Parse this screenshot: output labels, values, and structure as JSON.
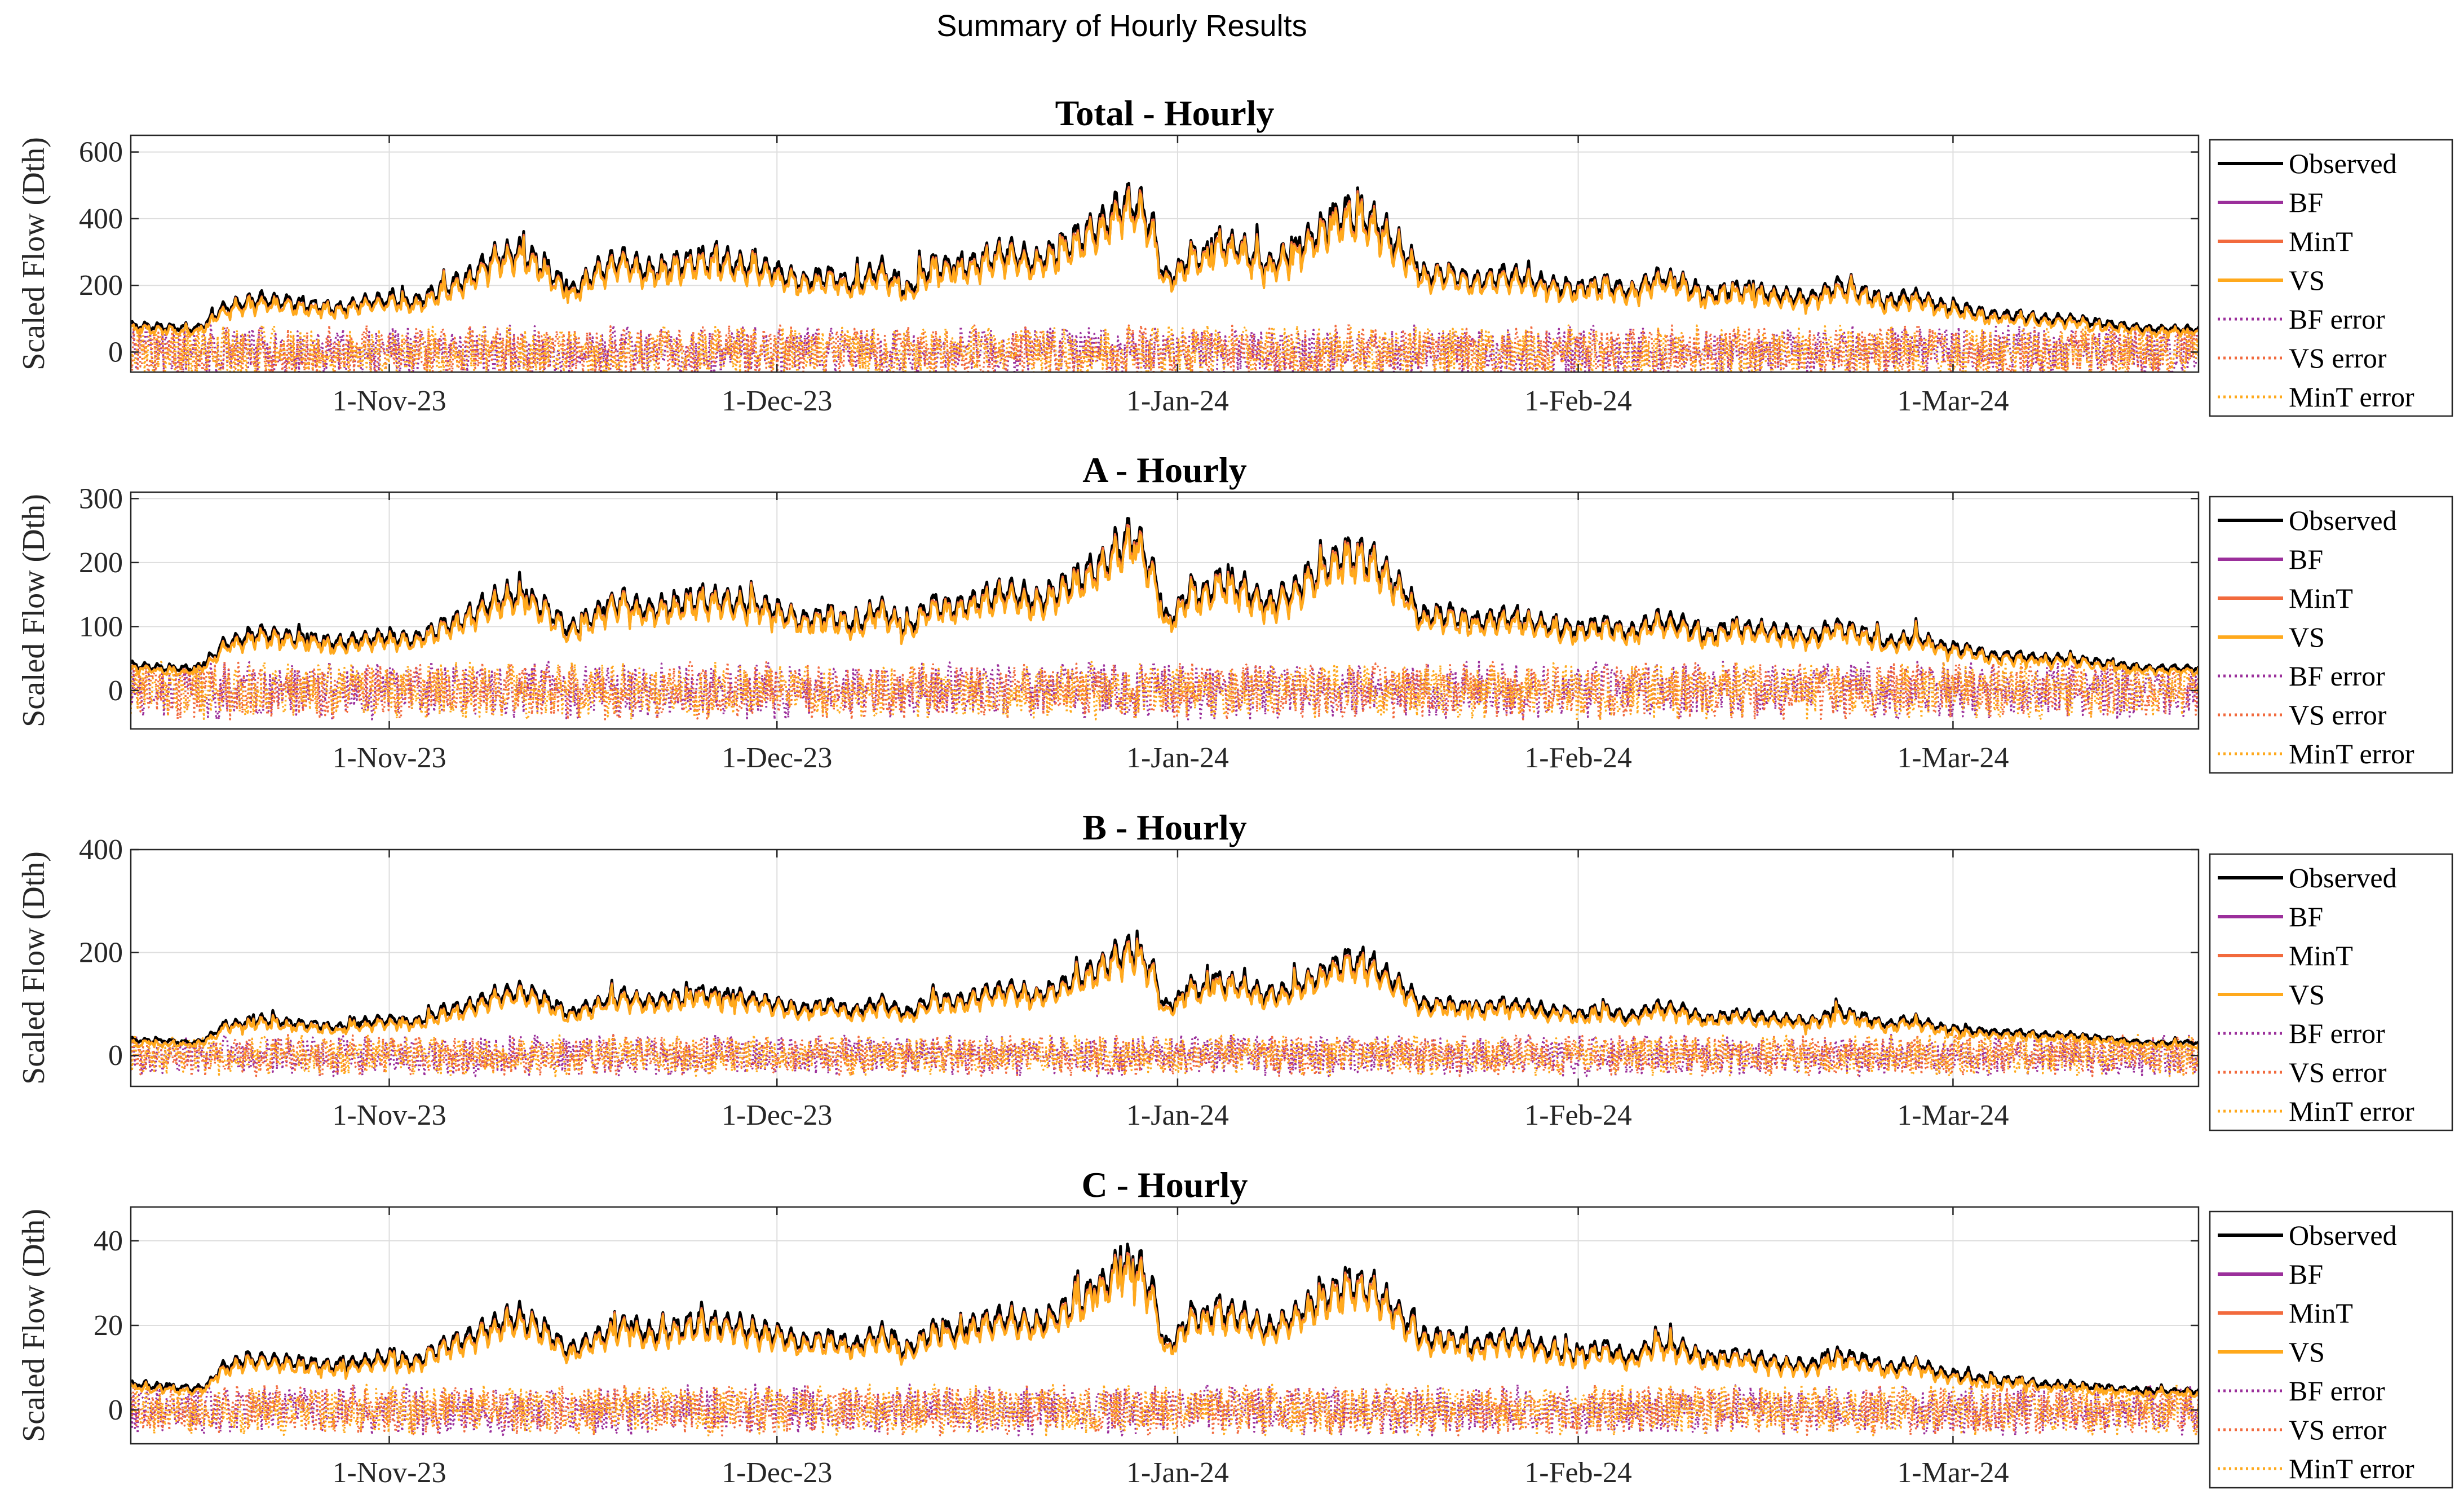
{
  "figure_title": "Summary of Hourly Results",
  "colors": {
    "Observed": "#000000",
    "BF": "#9b2f9b",
    "MinT": "#f26a3d",
    "VS": "#ffa91c",
    "BF error": "#9b2f9b",
    "VS error": "#f26a3d",
    "MinT error": "#ffa91c"
  },
  "legend": [
    "Observed",
    "BF",
    "MinT",
    "VS",
    "BF error",
    "VS error",
    "MinT error"
  ],
  "chart_data": [
    {
      "type": "line",
      "title": "Total - Hourly",
      "ylabel": "Scaled Flow (Dth)",
      "xlabel": "",
      "ylim": [
        -60,
        650
      ],
      "yticks": [
        0,
        200,
        400,
        600
      ],
      "ytick_labels": [
        "0",
        "200",
        "400",
        "600"
      ],
      "xlim_days": [
        0,
        160
      ],
      "xticks_days": [
        20,
        50,
        81,
        112,
        141
      ],
      "xtick_labels": [
        "1-Nov-23",
        "1-Dec-23",
        "1-Jan-24",
        "1-Feb-24",
        "1-Mar-24"
      ],
      "x_unit": "days since 12-Oct-23",
      "observed_daily": {
        "days": [
          0,
          3,
          5,
          6,
          7,
          9,
          10,
          12,
          14,
          16,
          18,
          20,
          22,
          24,
          26,
          28,
          30,
          32,
          34,
          36,
          38,
          40,
          42,
          44,
          46,
          48,
          50,
          52,
          54,
          56,
          58,
          60,
          62,
          64,
          66,
          68,
          70,
          72,
          74,
          75,
          76,
          77,
          78,
          79,
          80,
          81,
          82,
          83,
          84,
          86,
          88,
          90,
          92,
          94,
          96,
          98,
          100,
          102,
          104,
          106,
          108,
          110,
          112,
          114,
          116,
          118,
          120,
          122,
          124,
          126,
          128,
          130,
          132,
          134,
          136,
          138,
          140,
          142,
          144,
          146,
          148,
          150,
          152,
          154,
          156,
          158,
          160
        ],
        "values": [
          80,
          75,
          70,
          90,
          130,
          150,
          160,
          150,
          140,
          130,
          150,
          160,
          150,
          190,
          220,
          280,
          300,
          260,
          180,
          240,
          280,
          240,
          260,
          280,
          270,
          260,
          240,
          210,
          230,
          200,
          250,
          180,
          260,
          250,
          280,
          300,
          270,
          310,
          360,
          380,
          420,
          450,
          440,
          380,
          220,
          240,
          300,
          280,
          330,
          310,
          260,
          300,
          360,
          420,
          400,
          320,
          230,
          240,
          210,
          230,
          220,
          200,
          190,
          210,
          180,
          220,
          210,
          170,
          190,
          180,
          170,
          160,
          200,
          180,
          150,
          170,
          140,
          130,
          110,
          110,
          100,
          100,
          90,
          80,
          70,
          70,
          70
        ]
      },
      "error_range": [
        -80,
        80
      ]
    },
    {
      "type": "line",
      "title": "A - Hourly",
      "ylabel": "Scaled Flow (Dth)",
      "xlabel": "",
      "ylim": [
        -60,
        310
      ],
      "yticks": [
        0,
        100,
        200,
        300
      ],
      "ytick_labels": [
        "0",
        "100",
        "200",
        "300"
      ],
      "xlim_days": [
        0,
        160
      ],
      "xticks_days": [
        20,
        50,
        81,
        112,
        141
      ],
      "xtick_labels": [
        "1-Nov-23",
        "1-Dec-23",
        "1-Jan-24",
        "1-Feb-24",
        "1-Mar-24"
      ],
      "x_unit": "days since 12-Oct-23",
      "observed_daily": {
        "days": [
          0,
          3,
          5,
          6,
          7,
          9,
          10,
          12,
          14,
          16,
          18,
          20,
          22,
          24,
          26,
          28,
          30,
          32,
          34,
          36,
          38,
          40,
          42,
          44,
          46,
          48,
          50,
          52,
          54,
          56,
          58,
          60,
          62,
          64,
          66,
          68,
          70,
          72,
          74,
          75,
          76,
          77,
          78,
          79,
          80,
          81,
          82,
          83,
          84,
          86,
          88,
          90,
          92,
          94,
          96,
          98,
          100,
          102,
          104,
          106,
          108,
          110,
          112,
          114,
          116,
          118,
          120,
          122,
          124,
          126,
          128,
          130,
          132,
          134,
          136,
          138,
          140,
          142,
          144,
          146,
          148,
          150,
          152,
          154,
          156,
          158,
          160
        ],
        "values": [
          40,
          35,
          35,
          45,
          70,
          85,
          90,
          85,
          80,
          75,
          80,
          85,
          80,
          100,
          115,
          140,
          150,
          130,
          95,
          120,
          140,
          125,
          135,
          145,
          140,
          135,
          125,
          110,
          120,
          100,
          130,
          95,
          135,
          130,
          145,
          155,
          140,
          160,
          185,
          195,
          215,
          235,
          225,
          190,
          110,
          125,
          160,
          150,
          170,
          160,
          135,
          155,
          185,
          215,
          205,
          165,
          115,
          120,
          105,
          115,
          110,
          100,
          95,
          105,
          90,
          110,
          105,
          85,
          100,
          95,
          90,
          85,
          100,
          90,
          75,
          85,
          70,
          65,
          55,
          55,
          50,
          50,
          45,
          40,
          35,
          35,
          35
        ]
      },
      "error_range": [
        -45,
        45
      ]
    },
    {
      "type": "line",
      "title": "B - Hourly",
      "ylabel": "Scaled Flow (Dth)",
      "xlabel": "",
      "ylim": [
        -60,
        400
      ],
      "yticks": [
        0,
        200,
        400
      ],
      "ytick_labels": [
        "0",
        "200",
        "400"
      ],
      "xlim_days": [
        0,
        160
      ],
      "xticks_days": [
        20,
        50,
        81,
        112,
        141
      ],
      "xtick_labels": [
        "1-Nov-23",
        "1-Dec-23",
        "1-Jan-24",
        "1-Feb-24",
        "1-Mar-24"
      ],
      "x_unit": "days since 12-Oct-23",
      "observed_daily": {
        "days": [
          0,
          3,
          5,
          6,
          7,
          9,
          10,
          12,
          14,
          16,
          18,
          20,
          22,
          24,
          26,
          28,
          30,
          32,
          34,
          36,
          38,
          40,
          42,
          44,
          46,
          48,
          50,
          52,
          54,
          56,
          58,
          60,
          62,
          64,
          66,
          68,
          70,
          72,
          74,
          75,
          76,
          77,
          78,
          79,
          80,
          81,
          82,
          83,
          84,
          86,
          88,
          90,
          92,
          94,
          96,
          98,
          100,
          102,
          104,
          106,
          108,
          110,
          112,
          114,
          116,
          118,
          120,
          122,
          124,
          126,
          128,
          130,
          132,
          134,
          136,
          138,
          140,
          142,
          144,
          146,
          148,
          150,
          152,
          154,
          156,
          158,
          160
        ],
        "values": [
          30,
          28,
          25,
          35,
          55,
          65,
          70,
          65,
          60,
          55,
          65,
          70,
          65,
          85,
          95,
          115,
          125,
          110,
          80,
          100,
          115,
          105,
          110,
          120,
          115,
          110,
          100,
          90,
          100,
          85,
          105,
          80,
          110,
          105,
          120,
          130,
          115,
          135,
          160,
          170,
          190,
          205,
          195,
          170,
          95,
          105,
          135,
          125,
          145,
          135,
          115,
          130,
          155,
          185,
          175,
          140,
          100,
          100,
          90,
          100,
          95,
          85,
          80,
          90,
          75,
          95,
          90,
          70,
          80,
          75,
          70,
          65,
          85,
          75,
          60,
          70,
          55,
          50,
          45,
          45,
          40,
          40,
          35,
          30,
          25,
          25,
          25
        ]
      },
      "error_range": [
        -40,
        40
      ]
    },
    {
      "type": "line",
      "title": "C - Hourly",
      "ylabel": "Scaled Flow (Dth)",
      "xlabel": "",
      "ylim": [
        -8,
        48
      ],
      "yticks": [
        0,
        20,
        40
      ],
      "ytick_labels": [
        "0",
        "20",
        "40"
      ],
      "xlim_days": [
        0,
        160
      ],
      "xticks_days": [
        20,
        50,
        81,
        112,
        141
      ],
      "xtick_labels": [
        "1-Nov-23",
        "1-Dec-23",
        "1-Jan-24",
        "1-Feb-24",
        "1-Mar-24"
      ],
      "x_unit": "days since 12-Oct-23",
      "observed_daily": {
        "days": [
          0,
          3,
          5,
          6,
          7,
          9,
          10,
          12,
          14,
          16,
          18,
          20,
          22,
          24,
          26,
          28,
          30,
          32,
          34,
          36,
          38,
          40,
          42,
          44,
          46,
          48,
          50,
          52,
          54,
          56,
          58,
          60,
          62,
          64,
          66,
          68,
          70,
          72,
          74,
          75,
          76,
          77,
          78,
          79,
          80,
          81,
          82,
          83,
          84,
          86,
          88,
          90,
          92,
          94,
          96,
          98,
          100,
          102,
          104,
          106,
          108,
          110,
          112,
          114,
          116,
          118,
          120,
          122,
          124,
          126,
          128,
          130,
          132,
          134,
          136,
          138,
          140,
          142,
          144,
          146,
          148,
          150,
          152,
          154,
          156,
          158,
          160
        ],
        "values": [
          6,
          5.5,
          5,
          6,
          10,
          12,
          12,
          11.5,
          11,
          10.5,
          11.5,
          12.5,
          11.5,
          15,
          17,
          20,
          22,
          19,
          14,
          17,
          20,
          18,
          19,
          21,
          20,
          19,
          18,
          16,
          17,
          15,
          18,
          14,
          19,
          18,
          21,
          22,
          20,
          23,
          27,
          29,
          32,
          34,
          33,
          29,
          15,
          17,
          23,
          21,
          24,
          22,
          19,
          22,
          26,
          30,
          29,
          23,
          17,
          17,
          15,
          17,
          16,
          14,
          13,
          15,
          12,
          16,
          15,
          12,
          13,
          12,
          11,
          10.5,
          13,
          12,
          10,
          11,
          9,
          8,
          7,
          7,
          6,
          6,
          5.5,
          5,
          4.5,
          4.5,
          4.5
        ]
      },
      "error_range": [
        -6,
        6
      ]
    }
  ]
}
